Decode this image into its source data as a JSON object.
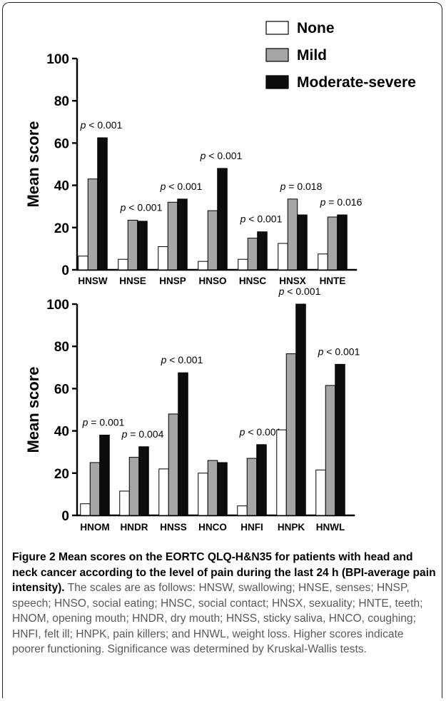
{
  "colors": {
    "none": "#ffffff",
    "mild": "#a6a6a6",
    "moderate": "#0d0d0d"
  },
  "legend": [
    "None",
    "Mild",
    "Moderate-severe"
  ],
  "chart_data": [
    {
      "type": "bar",
      "ylabel": "Mean score",
      "ylim": [
        0,
        100
      ],
      "yticks": [
        0,
        20,
        40,
        60,
        80,
        100
      ],
      "categories": [
        "HNSW",
        "HNSE",
        "HNSP",
        "HNSO",
        "HNSC",
        "HNSX",
        "HNTE"
      ],
      "series": [
        {
          "name": "None",
          "values": [
            6.5,
            5,
            11,
            4,
            5,
            12.5,
            7.5
          ]
        },
        {
          "name": "Mild",
          "values": [
            43,
            23.5,
            32,
            28,
            15,
            33.5,
            25
          ]
        },
        {
          "name": "Moderate-severe",
          "values": [
            62.5,
            23,
            33.5,
            48,
            18,
            26,
            26
          ]
        }
      ],
      "p_values": [
        "p < 0.001",
        "p < 0.001",
        "p < 0.001",
        "p < 0.001",
        "p < 0.001",
        "p = 0.018",
        "p = 0.016"
      ]
    },
    {
      "type": "bar",
      "ylabel": "Mean score",
      "ylim": [
        0,
        100
      ],
      "yticks": [
        0,
        20,
        40,
        60,
        80,
        100
      ],
      "categories": [
        "HNOM",
        "HNDR",
        "HNSS",
        "HNCO",
        "HNFI",
        "HNPK",
        "HNWL"
      ],
      "series": [
        {
          "name": "None",
          "values": [
            5.5,
            11.5,
            22,
            20,
            4.5,
            40.5,
            21.5
          ]
        },
        {
          "name": "Mild",
          "values": [
            25,
            27.5,
            48,
            26,
            27,
            76.5,
            61.5
          ]
        },
        {
          "name": "Moderate-severe",
          "values": [
            38,
            32.5,
            67.5,
            25,
            33.5,
            100,
            71.5
          ]
        }
      ],
      "p_values": [
        "p = 0.001",
        "p = 0.004",
        "p < 0.001",
        "",
        "p < 0.001",
        "p < 0.001",
        "p < 0.001"
      ]
    }
  ],
  "caption": {
    "label": "Figure 2",
    "title": "Mean scores on the EORTC QLQ-H&N35 for patients with head and neck cancer according to the level of pain during the last 24 h (BPI-average pain intensity).",
    "text": "The scales are as follows: HNSW, swallowing; HNSE, senses; HNSP, speech; HNSO, social eating; HNSC, social contact; HNSX, sexuality; HNTE, teeth; HNOM, opening mouth; HNDR, dry mouth; HNSS, sticky saliva, HNCO, coughing; HNFI, felt ill; HNPK, pain killers; and HNWL, weight loss. Higher scores indicate poorer functioning. Significance was determined by Kruskal-Wallis tests."
  }
}
